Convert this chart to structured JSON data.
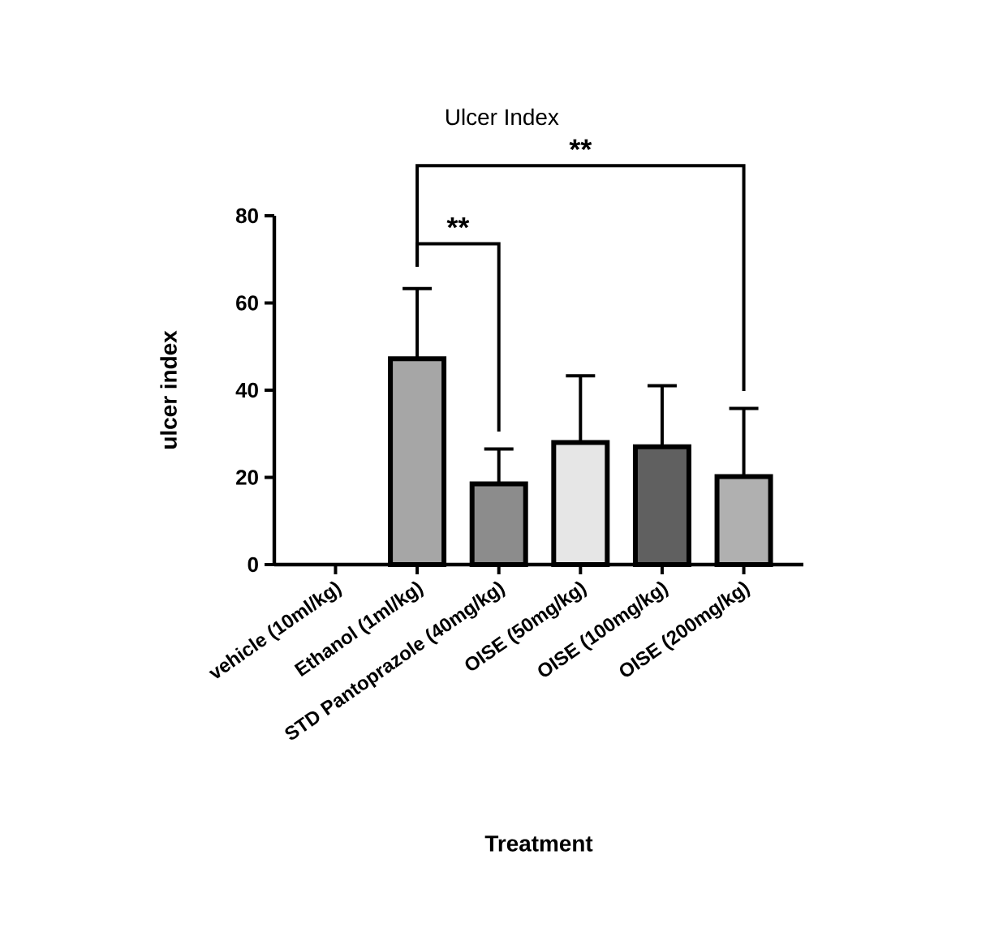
{
  "chart_data": {
    "type": "bar",
    "title": "Ulcer Index",
    "xlabel": "Treatment",
    "ylabel": "ulcer index",
    "categories": [
      "vehicle (10ml/kg)",
      "Ethanol (1ml/kg)",
      "STD Pantoprazole (40mg/kg)",
      "OISE (50mg/kg)",
      "OISE (100mg/kg)",
      "OISE (200mg/kg)"
    ],
    "values": [
      0,
      47.2,
      18.5,
      28,
      27,
      20.2
    ],
    "errors": [
      null,
      [
        47.2,
        63.3
      ],
      [
        18.5,
        26.5
      ],
      [
        28,
        43.3
      ],
      [
        27,
        41
      ],
      [
        20.2,
        35.8
      ]
    ],
    "colors": [
      "#ffffff",
      "#a6a6a6",
      "#8c8c8c",
      "#e6e6e6",
      "#606060",
      "#b0b0b0"
    ],
    "ylim": [
      0,
      80
    ],
    "yticks": [
      0,
      20,
      40,
      60,
      80
    ],
    "grid": false,
    "annotations": [
      "**",
      "**"
    ]
  }
}
